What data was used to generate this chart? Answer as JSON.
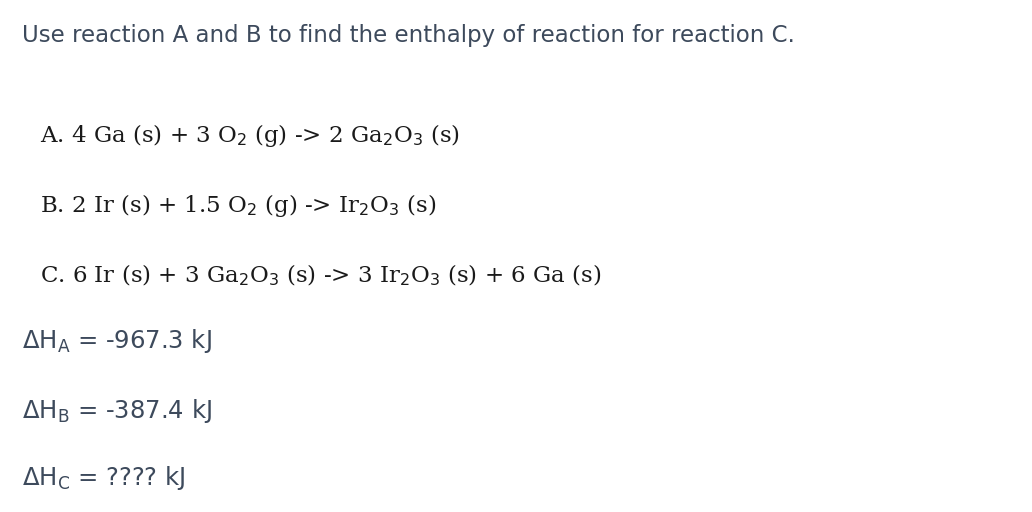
{
  "background_color": "#ffffff",
  "title_text": "Use reaction A and B to find the enthalpy of reaction for reaction C.",
  "title_fontsize": 16.5,
  "title_color": "#3d4a5c",
  "reaction_fontsize": 16.5,
  "reaction_color": "#1a1a1a",
  "enthalpy_fontsize": 17.5,
  "enthalpy_color": "#3d4a5c",
  "reactions": [
    "A. 4 Ga (s) + 3 O$_2$ (g) -> 2 Ga$_2$O$_3$ (s)",
    "B. 2 Ir (s) + 1.5 O$_2$ (g) -> Ir$_2$O$_3$ (s)",
    "C. 6 Ir (s) + 3 Ga$_2$O$_3$ (s) -> 3 Ir$_2$O$_3$ (s) + 6 Ga (s)"
  ],
  "enthalpy_texts": [
    "$\\Delta$H$_\\mathrm{A}$ = -967.3 kJ",
    "$\\Delta$H$_\\mathrm{B}$ = -387.4 kJ",
    "$\\Delta$H$_\\mathrm{C}$ = ???? kJ"
  ]
}
